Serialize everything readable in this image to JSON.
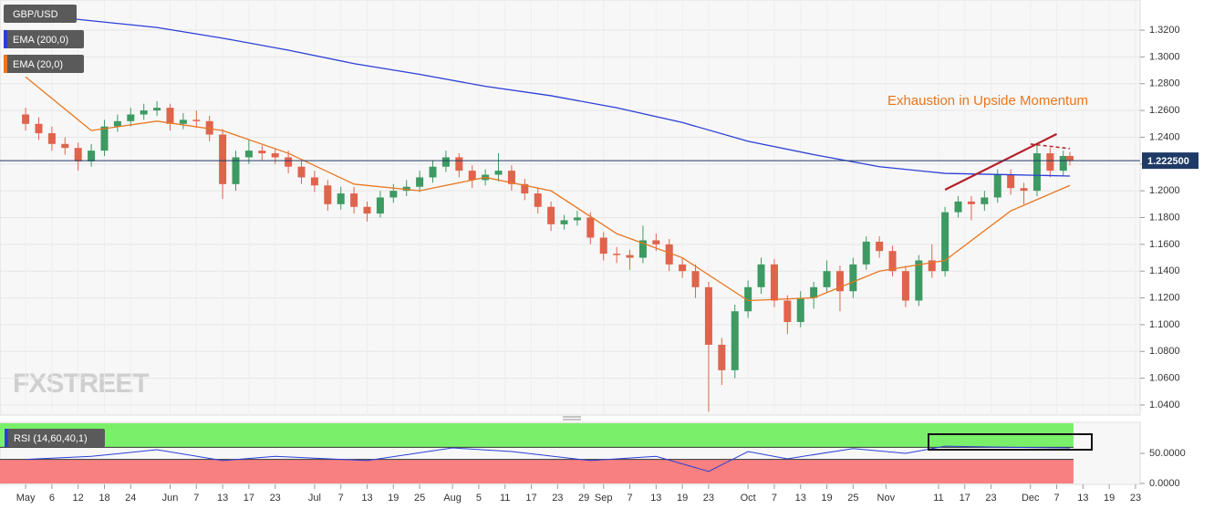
{
  "chart_data": {
    "type": "candlestick",
    "title": "GBP/USD",
    "x": [
      0,
      2,
      4,
      6,
      8,
      10,
      12,
      14,
      16,
      18,
      20,
      22,
      24,
      26,
      28,
      30,
      32,
      34,
      36,
      38,
      40,
      42,
      44,
      46,
      48,
      50,
      52,
      54,
      56,
      58,
      60,
      62,
      64,
      66,
      68,
      70,
      72,
      74,
      76,
      78,
      80,
      82,
      84,
      86,
      88,
      90,
      92,
      94,
      96,
      98,
      100,
      102,
      104,
      106,
      108,
      110,
      112,
      114,
      116,
      118,
      120,
      122,
      124,
      126,
      128,
      130,
      132,
      134,
      136,
      138,
      140,
      142,
      144,
      146,
      148,
      150,
      152,
      154,
      156,
      158,
      159
    ],
    "open": [
      1.257,
      1.25,
      1.243,
      1.235,
      1.232,
      1.222,
      1.23,
      1.248,
      1.252,
      1.257,
      1.26,
      1.262,
      1.25,
      1.253,
      1.252,
      1.242,
      1.205,
      1.225,
      1.23,
      1.228,
      1.225,
      1.218,
      1.21,
      1.204,
      1.19,
      1.198,
      1.188,
      1.183,
      1.195,
      1.2,
      1.203,
      1.21,
      1.218,
      1.225,
      1.215,
      1.208,
      1.212,
      1.215,
      1.205,
      1.198,
      1.188,
      1.175,
      1.178,
      1.18,
      1.165,
      1.153,
      1.152,
      1.15,
      1.163,
      1.16,
      1.145,
      1.14,
      1.128,
      1.085,
      1.066,
      1.11,
      1.128,
      1.145,
      1.118,
      1.102,
      1.12,
      1.128,
      1.14,
      1.125,
      1.145,
      1.162,
      1.155,
      1.14,
      1.118,
      1.148,
      1.14,
      1.184,
      1.192,
      1.19,
      1.195,
      1.212,
      1.202,
      1.2,
      1.228,
      1.215,
      1.226
    ],
    "high": [
      1.262,
      1.255,
      1.248,
      1.24,
      1.236,
      1.235,
      1.253,
      1.257,
      1.262,
      1.265,
      1.267,
      1.265,
      1.258,
      1.26,
      1.256,
      1.246,
      1.23,
      1.238,
      1.234,
      1.232,
      1.23,
      1.222,
      1.215,
      1.208,
      1.203,
      1.203,
      1.192,
      1.2,
      1.205,
      1.208,
      1.215,
      1.223,
      1.23,
      1.228,
      1.219,
      1.216,
      1.228,
      1.219,
      1.209,
      1.202,
      1.192,
      1.182,
      1.185,
      1.184,
      1.169,
      1.158,
      1.156,
      1.174,
      1.168,
      1.164,
      1.15,
      1.145,
      1.132,
      1.09,
      1.115,
      1.133,
      1.15,
      1.149,
      1.122,
      1.125,
      1.132,
      1.148,
      1.144,
      1.15,
      1.166,
      1.166,
      1.159,
      1.144,
      1.152,
      1.16,
      1.188,
      1.196,
      1.196,
      1.2,
      1.216,
      1.216,
      1.206,
      1.234,
      1.232,
      1.23,
      1.229
    ],
    "low": [
      1.245,
      1.238,
      1.23,
      1.227,
      1.215,
      1.218,
      1.226,
      1.244,
      1.248,
      1.253,
      1.256,
      1.245,
      1.246,
      1.247,
      1.237,
      1.194,
      1.2,
      1.22,
      1.223,
      1.22,
      1.213,
      1.205,
      1.199,
      1.185,
      1.186,
      1.183,
      1.177,
      1.18,
      1.191,
      1.196,
      1.199,
      1.206,
      1.214,
      1.21,
      1.202,
      1.204,
      1.207,
      1.2,
      1.193,
      1.183,
      1.17,
      1.171,
      1.174,
      1.16,
      1.148,
      1.146,
      1.141,
      1.146,
      1.155,
      1.14,
      1.135,
      1.12,
      1.035,
      1.055,
      1.06,
      1.105,
      1.123,
      1.113,
      1.093,
      1.098,
      1.112,
      1.124,
      1.11,
      1.12,
      1.141,
      1.15,
      1.136,
      1.113,
      1.114,
      1.135,
      1.136,
      1.18,
      1.178,
      1.185,
      1.191,
      1.197,
      1.19,
      1.196,
      1.21,
      1.211,
      1.219
    ],
    "close": [
      1.25,
      1.243,
      1.235,
      1.232,
      1.222,
      1.23,
      1.248,
      1.252,
      1.257,
      1.26,
      1.262,
      1.25,
      1.253,
      1.252,
      1.242,
      1.205,
      1.225,
      1.23,
      1.228,
      1.225,
      1.218,
      1.21,
      1.204,
      1.19,
      1.198,
      1.188,
      1.183,
      1.195,
      1.2,
      1.203,
      1.21,
      1.218,
      1.225,
      1.215,
      1.208,
      1.212,
      1.215,
      1.205,
      1.198,
      1.188,
      1.175,
      1.178,
      1.18,
      1.165,
      1.153,
      1.152,
      1.15,
      1.163,
      1.16,
      1.145,
      1.14,
      1.128,
      1.085,
      1.066,
      1.11,
      1.128,
      1.145,
      1.118,
      1.102,
      1.12,
      1.128,
      1.14,
      1.125,
      1.145,
      1.162,
      1.155,
      1.14,
      1.118,
      1.148,
      1.14,
      1.184,
      1.192,
      1.19,
      1.195,
      1.212,
      1.202,
      1.2,
      1.228,
      1.215,
      1.226,
      1.2225
    ],
    "colors": {
      "up": "#3d9a62",
      "down": "#e0634c"
    },
    "xlim": [
      -3.9,
      169.7
    ],
    "xticks": [
      {
        "value": 0,
        "label": "May"
      },
      {
        "value": 4,
        "label": "6"
      },
      {
        "value": 8,
        "label": "12"
      },
      {
        "value": 12,
        "label": "18"
      },
      {
        "value": 16,
        "label": "24"
      },
      {
        "value": 22,
        "label": "Jun"
      },
      {
        "value": 26,
        "label": "7"
      },
      {
        "value": 30,
        "label": "13"
      },
      {
        "value": 34,
        "label": "17"
      },
      {
        "value": 38,
        "label": "23"
      },
      {
        "value": 44,
        "label": "Jul"
      },
      {
        "value": 48,
        "label": "7"
      },
      {
        "value": 52,
        "label": "13"
      },
      {
        "value": 56,
        "label": "19"
      },
      {
        "value": 60,
        "label": "25"
      },
      {
        "value": 65,
        "label": "Aug"
      },
      {
        "value": 69,
        "label": "5"
      },
      {
        "value": 73,
        "label": "11"
      },
      {
        "value": 77,
        "label": "17"
      },
      {
        "value": 81,
        "label": "23"
      },
      {
        "value": 85,
        "label": "29"
      },
      {
        "value": 88,
        "label": "Sep"
      },
      {
        "value": 92,
        "label": "7"
      },
      {
        "value": 96,
        "label": "13"
      },
      {
        "value": 100,
        "label": "19"
      },
      {
        "value": 104,
        "label": "23"
      },
      {
        "value": 110,
        "label": "Oct"
      },
      {
        "value": 114,
        "label": "7"
      },
      {
        "value": 118,
        "label": "13"
      },
      {
        "value": 122,
        "label": "19"
      },
      {
        "value": 126,
        "label": "25"
      },
      {
        "value": 131,
        "label": "Nov"
      },
      {
        "value": 139,
        "label": "11"
      },
      {
        "value": 143,
        "label": "17"
      },
      {
        "value": 147,
        "label": "23"
      },
      {
        "value": 153,
        "label": "Dec"
      },
      {
        "value": 157,
        "label": "7"
      },
      {
        "value": 161,
        "label": "13"
      },
      {
        "value": 165,
        "label": "19"
      },
      {
        "value": 169,
        "label": "23"
      }
    ],
    "ylim": [
      1.0325,
      1.3425
    ],
    "yticks": [
      {
        "value": 1.04,
        "label": "1.0400"
      },
      {
        "value": 1.06,
        "label": "1.0600"
      },
      {
        "value": 1.08,
        "label": "1.0800"
      },
      {
        "value": 1.1,
        "label": "1.1000"
      },
      {
        "value": 1.12,
        "label": "1.1200"
      },
      {
        "value": 1.14,
        "label": "1.1400"
      },
      {
        "value": 1.16,
        "label": "1.1600"
      },
      {
        "value": 1.18,
        "label": "1.1800"
      },
      {
        "value": 1.2,
        "label": "1.2000"
      },
      {
        "value": 1.22,
        "label": "1.2200"
      },
      {
        "value": 1.24,
        "label": "1.2400"
      },
      {
        "value": 1.26,
        "label": "1.2600"
      },
      {
        "value": 1.28,
        "label": "1.2800"
      },
      {
        "value": 1.3,
        "label": "1.3000"
      },
      {
        "value": 1.32,
        "label": "1.3200"
      }
    ],
    "grid": true,
    "last_price": {
      "value": 1.2225,
      "label": "1.222500"
    },
    "series": [
      {
        "name": "EMA (200,0)",
        "color": "#2b3fd6",
        "x": [
          0,
          10,
          20,
          30,
          40,
          50,
          60,
          70,
          80,
          90,
          100,
          110,
          120,
          130,
          140,
          150,
          159
        ],
        "values": [
          1.332,
          1.327,
          1.322,
          1.314,
          1.305,
          1.295,
          1.287,
          1.278,
          1.271,
          1.262,
          1.251,
          1.237,
          1.227,
          1.218,
          1.213,
          1.212,
          1.211
        ]
      },
      {
        "name": "EMA (20,0)",
        "color": "#e8761f",
        "x": [
          0,
          10,
          20,
          30,
          40,
          50,
          60,
          70,
          80,
          90,
          100,
          110,
          120,
          130,
          140,
          150,
          159
        ],
        "values": [
          1.285,
          1.245,
          1.252,
          1.245,
          1.228,
          1.205,
          1.2,
          1.21,
          1.2,
          1.168,
          1.15,
          1.118,
          1.12,
          1.14,
          1.148,
          1.185,
          1.204
        ]
      }
    ],
    "annotation": "Exhaustion in Upside Momentum",
    "trendlines": [
      {
        "x": [
          140,
          157
        ],
        "values": [
          1.2008,
          1.2424
        ],
        "color": "#b3202a"
      },
      {
        "x": [
          153,
          159
        ],
        "values": [
          1.2349,
          1.2315
        ],
        "color": "#b3202a",
        "dashed": true
      }
    ],
    "watermark": "FXSTREET",
    "rsi": {
      "name": "RSI (14,60,40,1)",
      "color": "#2b3fd6",
      "x": [
        0,
        10,
        20,
        30,
        38,
        52,
        65,
        74,
        86,
        96,
        104,
        110,
        116,
        126,
        134,
        140,
        150,
        159
      ],
      "values": [
        40,
        45,
        56,
        38,
        45,
        38,
        59,
        53,
        38,
        45,
        20,
        53,
        41,
        58,
        50,
        62,
        60,
        59
      ],
      "ylim": [
        0,
        100
      ],
      "yticks": [
        {
          "value": 50,
          "label": "50.0000"
        },
        {
          "value": 0,
          "label": "0.0000"
        }
      ],
      "upper": 60,
      "lower": 40
    }
  }
}
